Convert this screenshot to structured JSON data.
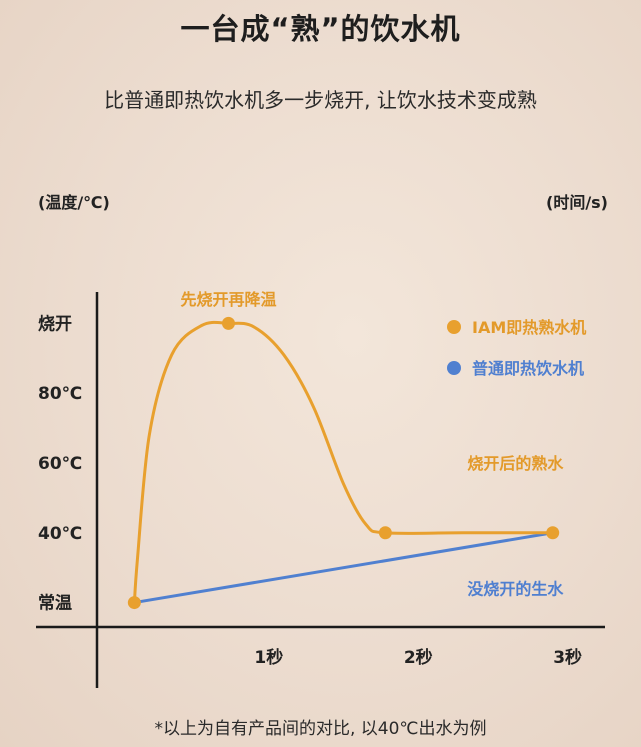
{
  "header": {
    "title": "一台成“熟”的饮水机",
    "subtitle": "比普通即热饮水机多一步烧开, 让饮水技术变成熟"
  },
  "footnote": "*以上为自有产品间的对比, 以40℃出水为例",
  "colors": {
    "orange": "#e8a02e",
    "blue": "#5080d0",
    "axis": "#1a1a1a"
  },
  "chart_data": {
    "type": "line",
    "title": "一台成“熟”的饮水机",
    "ylabel": "(温度/℃)",
    "xlabel": "(时间/s)",
    "x_ticks": [
      {
        "value": 1,
        "label": "1秒"
      },
      {
        "value": 2,
        "label": "2秒"
      },
      {
        "value": 3,
        "label": "3秒"
      }
    ],
    "y_ticks": [
      {
        "level": 0,
        "label": "常温"
      },
      {
        "level": 1,
        "label": "40℃"
      },
      {
        "level": 2,
        "label": "60℃"
      },
      {
        "level": 3,
        "label": "80℃"
      },
      {
        "level": 4,
        "label": "烧开"
      }
    ],
    "xlim": [
      -0.15,
      3.25
    ],
    "ylim": [
      -0.35,
      4.45
    ],
    "series": [
      {
        "name": "IAM即热熟水机",
        "color": "#e8a02e",
        "markers": [
          [
            0.1,
            0
          ],
          [
            0.73,
            4
          ],
          [
            1.78,
            1
          ],
          [
            2.9,
            1
          ]
        ],
        "path": [
          [
            0.1,
            0
          ],
          [
            0.12,
            0.6
          ],
          [
            0.2,
            2.4
          ],
          [
            0.35,
            3.55
          ],
          [
            0.55,
            3.97
          ],
          [
            0.73,
            4
          ],
          [
            0.9,
            3.95
          ],
          [
            1.1,
            3.55
          ],
          [
            1.3,
            2.8
          ],
          [
            1.5,
            1.7
          ],
          [
            1.65,
            1.12
          ],
          [
            1.78,
            1
          ],
          [
            2.3,
            1
          ],
          [
            2.9,
            1
          ]
        ]
      },
      {
        "name": "普通即热饮水机",
        "color": "#5080d0",
        "markers": [],
        "path": [
          [
            0.1,
            0
          ],
          [
            2.9,
            1
          ]
        ]
      }
    ],
    "annotations": [
      {
        "text": "先烧开再降温",
        "series": 0,
        "x": 0.73,
        "y": 4.35
      },
      {
        "text": "烧开后的熟水",
        "series": 0,
        "x": 2.65,
        "y": 2
      },
      {
        "text": "没烧开的生水",
        "series": 1,
        "x": 2.65,
        "y": 0.2
      }
    ],
    "legend_position": "top-right"
  }
}
